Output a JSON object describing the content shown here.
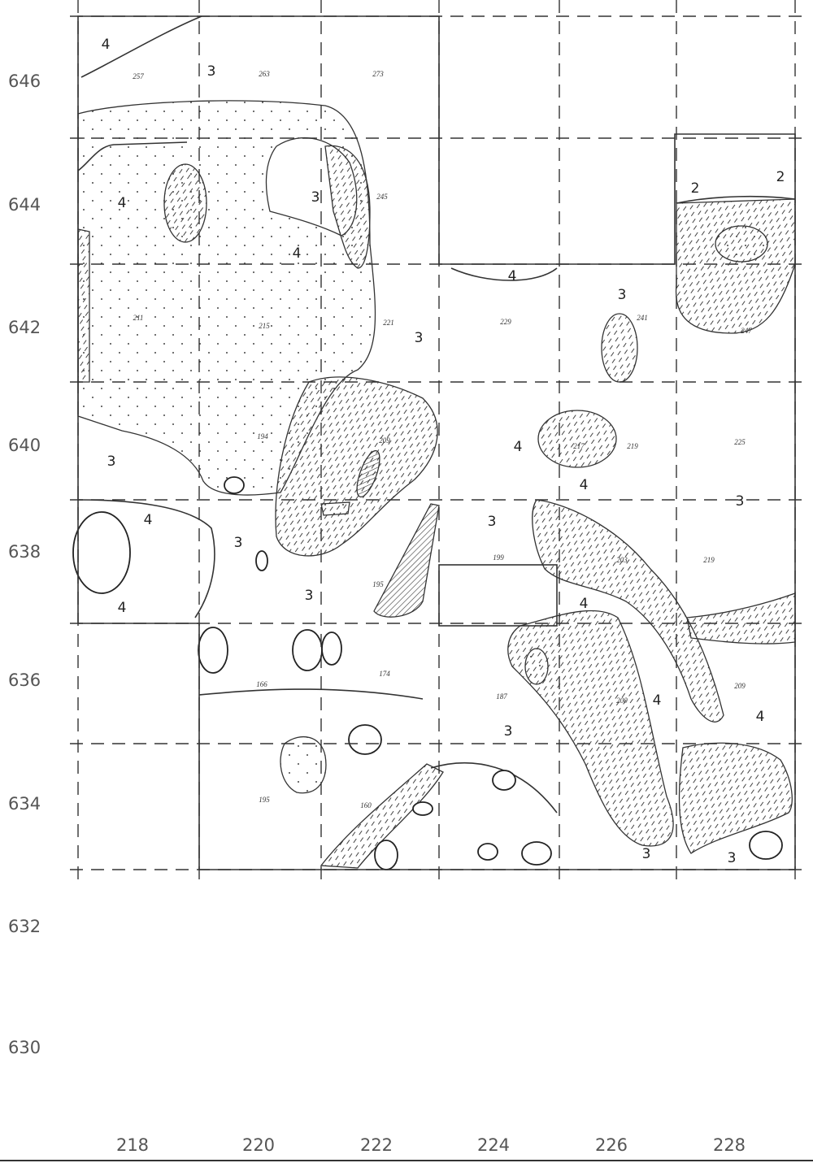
{
  "y_axis_labels": [
    "646",
    "644",
    "642",
    "640",
    "638",
    "636",
    "634",
    "632",
    "630"
  ],
  "x_axis_labels": [
    "218",
    "220",
    "222",
    "224",
    "226",
    "228"
  ],
  "layer_labels": [
    "4",
    "3",
    "3",
    "4",
    "4",
    "2",
    "2",
    "4",
    "3",
    "3",
    "3",
    "4",
    "4",
    "3",
    "3",
    "4",
    "3",
    "3",
    "4",
    "4",
    "4",
    "4",
    "3",
    "3",
    "3"
  ],
  "feature_labels": [
    "257",
    "263",
    "273",
    "211",
    "215",
    "221",
    "245",
    "247",
    "241",
    "229",
    "209",
    "217",
    "219",
    "225",
    "203",
    "199",
    "200",
    "209",
    "195",
    "194",
    "166",
    "174",
    "187",
    "160",
    "195",
    "219"
  ]
}
